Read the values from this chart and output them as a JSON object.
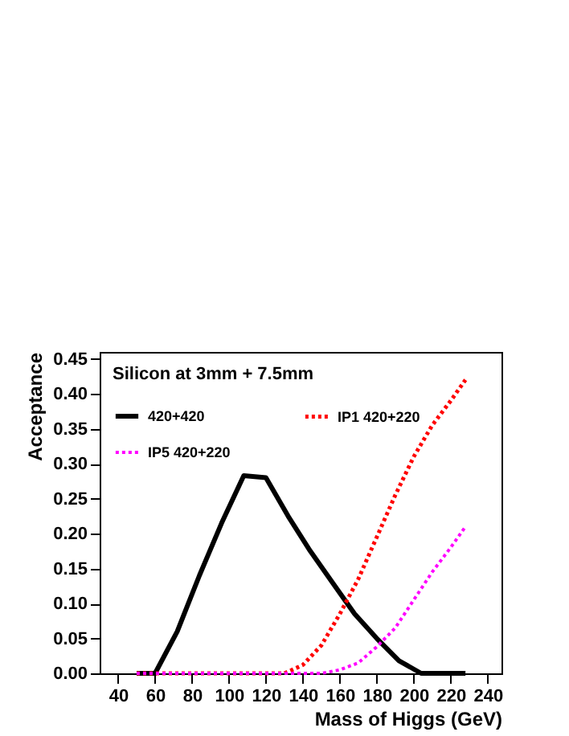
{
  "chart_data": {
    "type": "line",
    "legend_title": "Silicon at 3mm + 7.5mm",
    "xlabel": "Mass of Higgs (GeV)",
    "ylabel": "Acceptance",
    "series": [
      {
        "name": "420+420",
        "color": "#000000",
        "line_style": "solid",
        "x": [
          50,
          60,
          72,
          84,
          96,
          108,
          120,
          132,
          144,
          156,
          168,
          180,
          192,
          204,
          216,
          228
        ],
        "values": [
          0,
          0,
          0.06,
          0.14,
          0.215,
          0.283,
          0.28,
          0.225,
          0.175,
          0.13,
          0.085,
          0.05,
          0.018,
          0,
          0,
          0
        ]
      },
      {
        "name": "IP1 420+220",
        "color": "#ff0000",
        "line_style": "dotted",
        "x": [
          50,
          80,
          110,
          130,
          140,
          150,
          160,
          170,
          180,
          190,
          200,
          210,
          220,
          228
        ],
        "values": [
          0,
          0,
          0,
          0,
          0.012,
          0.04,
          0.085,
          0.135,
          0.195,
          0.255,
          0.31,
          0.355,
          0.39,
          0.42
        ]
      },
      {
        "name": "IP5 420+220",
        "color": "#ff00ff",
        "line_style": "dotted",
        "x": [
          50,
          80,
          110,
          140,
          150,
          160,
          170,
          180,
          190,
          200,
          210,
          220,
          228
        ],
        "values": [
          0,
          0,
          0,
          0,
          0,
          0.005,
          0.015,
          0.038,
          0.065,
          0.105,
          0.145,
          0.18,
          0.21
        ]
      }
    ],
    "xlim": [
      30,
      247.5
    ],
    "ylim": [
      0,
      0.46
    ],
    "xticks": [
      40,
      60,
      80,
      100,
      120,
      140,
      160,
      180,
      200,
      220,
      240
    ],
    "yticks": [
      {
        "value": 0,
        "label": "0.00"
      },
      {
        "value": 0.05,
        "label": "0.05"
      },
      {
        "value": 0.1,
        "label": "0.10"
      },
      {
        "value": 0.15,
        "label": "0.15"
      },
      {
        "value": 0.2,
        "label": "0.20"
      },
      {
        "value": 0.25,
        "label": "0.25"
      },
      {
        "value": 0.3,
        "label": "0.30"
      },
      {
        "value": 0.35,
        "label": "0.35"
      },
      {
        "value": 0.4,
        "label": "0.40"
      },
      {
        "value": 0.45,
        "label": "0.45"
      }
    ],
    "grid": false,
    "legend": "top left",
    "marker": "none"
  }
}
